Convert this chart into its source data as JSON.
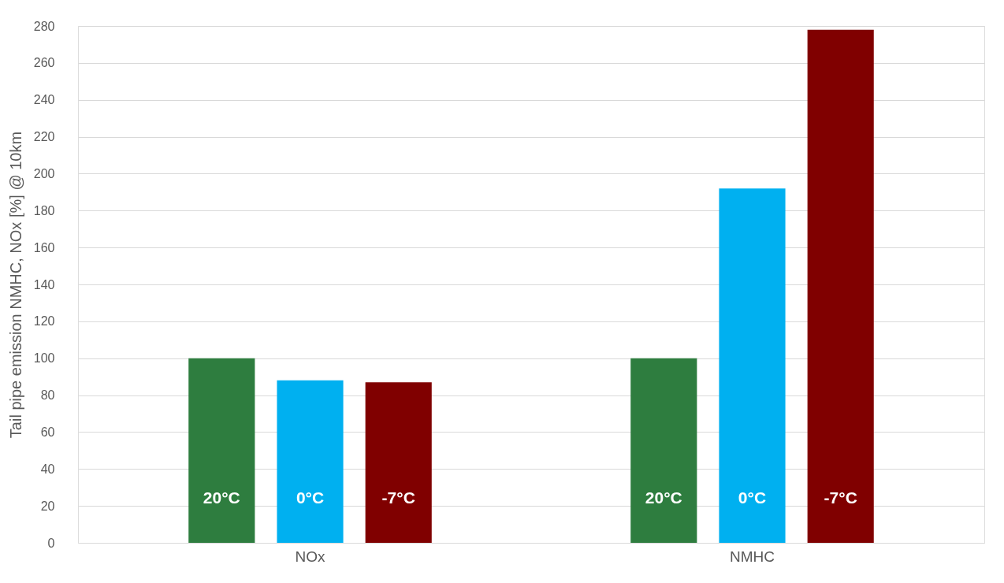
{
  "chart_data": {
    "type": "bar",
    "ylabel": "Tail pipe emission NMHC, NOx [%] @ 10km",
    "categories": [
      "NOx",
      "NMHC"
    ],
    "series": [
      {
        "name": "20°C",
        "color": "#2e7d3f",
        "values": [
          100,
          100
        ]
      },
      {
        "name": "0°C",
        "color": "#00b0f0",
        "values": [
          88,
          192
        ]
      },
      {
        "name": "-7°C",
        "color": "#800000",
        "values": [
          87,
          278
        ]
      }
    ],
    "ylim": [
      0,
      280
    ],
    "yticks": [
      0,
      20,
      40,
      60,
      80,
      100,
      120,
      140,
      160,
      180,
      200,
      220,
      240,
      260,
      280
    ],
    "grid": "y",
    "legend": false
  }
}
